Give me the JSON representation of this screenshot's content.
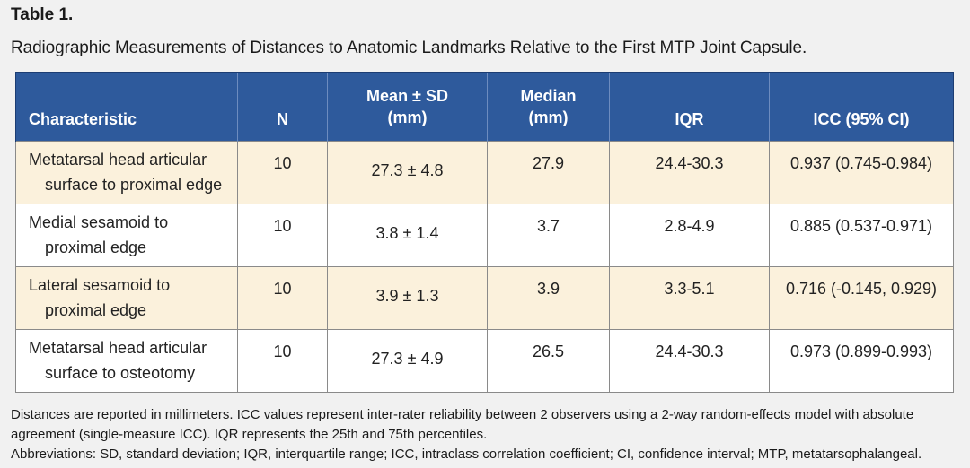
{
  "table_label": "Table 1.",
  "caption": "Radiographic Measurements of Distances to Anatomic Landmarks Relative to the First MTP Joint Capsule.",
  "headers": {
    "characteristic": "Characteristic",
    "n": "N",
    "mean_line1": "Mean ± SD",
    "mean_line2": "(mm)",
    "median_line1": "Median",
    "median_line2": "(mm)",
    "iqr": "IQR",
    "icc": "ICC (95% CI)"
  },
  "rows": [
    {
      "char_line1": "Metatarsal head articular",
      "char_line2": "surface to proximal edge",
      "n": "10",
      "mean_sd": "27.3 ± 4.8",
      "median": "27.9",
      "iqr": "24.4-30.3",
      "icc": "0.937 (0.745-0.984)"
    },
    {
      "char_line1": "Medial sesamoid to",
      "char_line2": "proximal edge",
      "n": "10",
      "mean_sd": "3.8 ± 1.4",
      "median": "3.7",
      "iqr": "2.8-4.9",
      "icc": "0.885 (0.537-0.971)"
    },
    {
      "char_line1": "Lateral sesamoid to",
      "char_line2": "proximal edge",
      "n": "10",
      "mean_sd": "3.9 ± 1.3",
      "median": "3.9",
      "iqr": "3.3-5.1",
      "icc": "0.716 (-0.145, 0.929)"
    },
    {
      "char_line1": "Metatarsal head articular",
      "char_line2": "surface to osteotomy",
      "n": "10",
      "mean_sd": "27.3 ± 4.9",
      "median": "26.5",
      "iqr": "24.4-30.3",
      "icc": "0.973 (0.899-0.993)"
    }
  ],
  "footnotes": {
    "line1": "Distances are reported in millimeters. ICC values represent inter-rater reliability between 2 observers using a 2-way random-effects model with absolute",
    "line2": "agreement (single-measure ICC). IQR represents the 25th and 75th percentiles.",
    "line3": "Abbreviations: SD, standard deviation; IQR, interquartile range; ICC, intraclass correlation coefficient; CI, confidence interval; MTP, metatarsophalangeal."
  },
  "colors": {
    "header_bg": "#2e5a9c",
    "shaded_row": "#fbf1dc",
    "plain_row": "#ffffff",
    "page_bg": "#f1f1f1"
  }
}
